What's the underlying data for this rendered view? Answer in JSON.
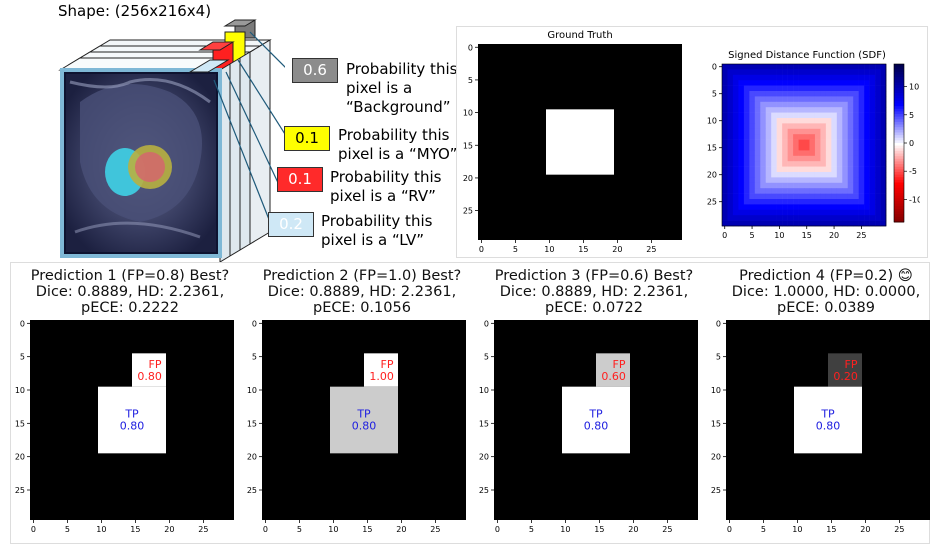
{
  "volume": {
    "shape_label": "Shape: (256x216x4)",
    "classes": [
      {
        "value": "0.6",
        "color": "#8c8c8c",
        "text_color": "#ffffff",
        "line1": "Probability this",
        "line2": "pixel is a",
        "line3": "“Background”"
      },
      {
        "value": "0.1",
        "color": "#ffff00",
        "text_color": "#000000",
        "line1": "Probability this",
        "line2": "pixel is a “MYO”"
      },
      {
        "value": "0.1",
        "color": "#ff2a2a",
        "text_color": "#ffffff",
        "line1": "Probability this",
        "line2": "pixel is a “RV”"
      },
      {
        "value": "0.2",
        "color": "#cfe8f6",
        "text_color": "#ffffff",
        "line1": "Probability this",
        "line2": "pixel is a “LV”"
      }
    ]
  },
  "ground_truth": {
    "title": "Ground Truth",
    "grid_size": 30,
    "square": [
      10,
      19
    ],
    "x_ticks": [
      0,
      5,
      10,
      15,
      20,
      25
    ],
    "y_ticks": [
      0,
      5,
      10,
      15,
      20,
      25
    ]
  },
  "sdf": {
    "title": "Signed Distance Function (SDF)",
    "colorbar_ticks": [
      10,
      5,
      0,
      -5,
      -10
    ],
    "x_ticks": [
      0,
      5,
      10,
      15,
      20,
      25
    ],
    "y_ticks": [
      0,
      5,
      10,
      15,
      20,
      25
    ]
  },
  "predictions": [
    {
      "line1": "Prediction 1 (FP=0.8) Best?",
      "line2": "Dice: 0.8889, HD: 2.2361,",
      "line3": "pECE: 0.2222",
      "fp_label": "FP",
      "fp_value": "0.80",
      "fp_gray": 255,
      "tp_label": "TP",
      "tp_value": "0.80",
      "tp_gray": 255
    },
    {
      "line1": "Prediction 2 (FP=1.0) Best?",
      "line2": "Dice: 0.8889, HD: 2.2361,",
      "line3": "pECE: 0.1056",
      "fp_label": "FP",
      "fp_value": "1.00",
      "fp_gray": 255,
      "tp_label": "TP",
      "tp_value": "0.80",
      "tp_gray": 204
    },
    {
      "line1": "Prediction 3 (FP=0.6) Best?",
      "line2": "Dice: 0.8889, HD: 2.2361,",
      "line3": "pECE: 0.0722",
      "fp_label": "FP",
      "fp_value": "0.60",
      "fp_gray": 204,
      "tp_label": "TP",
      "tp_value": "0.80",
      "tp_gray": 255
    },
    {
      "line1": "Prediction 4 (FP=0.2) 😊",
      "line2": "Dice: 1.0000, HD: 0.0000,",
      "line3": "pECE: 0.0389",
      "fp_label": "FP",
      "fp_value": "0.20",
      "fp_gray": 64,
      "tp_label": "TP",
      "tp_value": "0.80",
      "tp_gray": 255
    }
  ],
  "pred_ticks": [
    0,
    5,
    10,
    15,
    20,
    25
  ]
}
